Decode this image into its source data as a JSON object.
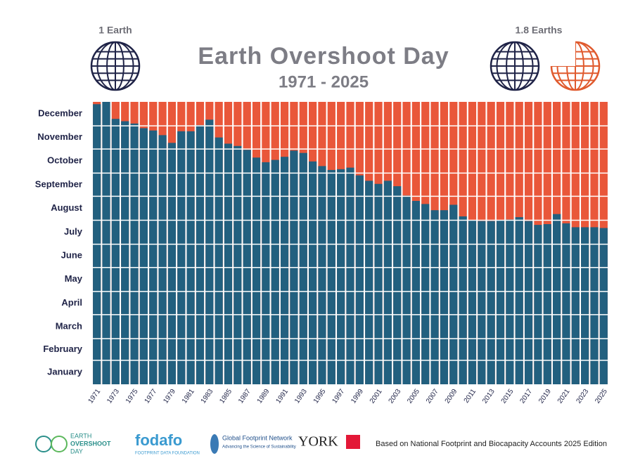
{
  "chart_data": {
    "type": "bar",
    "title": "Earth Overshoot Day",
    "subtitle": "1971 - 2025",
    "annotations": [
      "1 Earth",
      "1.8 Earths"
    ],
    "categories": [
      "1971",
      null,
      "1973",
      null,
      "1975",
      null,
      "1977",
      null,
      "1979",
      null,
      "1981",
      null,
      "1983",
      null,
      "1985",
      null,
      "1987",
      null,
      "1989",
      null,
      "1991",
      null,
      "1993",
      null,
      "1995",
      null,
      "1997",
      null,
      "1999",
      null,
      "2001",
      null,
      "2003",
      null,
      "2005",
      null,
      "2007",
      null,
      "2009",
      null,
      "2011",
      null,
      "2013",
      null,
      "2015",
      null,
      "2017",
      null,
      "2019",
      null,
      "2021",
      null,
      "2023",
      null,
      "2025"
    ],
    "values": [
      362,
      365,
      343,
      340,
      337,
      331,
      328,
      322,
      312,
      327,
      327,
      335,
      342,
      319,
      311,
      308,
      303,
      293,
      287,
      290,
      294,
      302,
      299,
      288,
      282,
      277,
      278,
      280,
      270,
      263,
      259,
      263,
      256,
      244,
      237,
      233,
      225,
      225,
      232,
      217,
      212,
      211,
      211,
      212,
      213,
      216,
      211,
      206,
      207,
      220,
      208,
      203,
      203,
      203,
      202
    ],
    "color": "#22607f",
    "background_color": "#e9573a",
    "ylim": [
      0,
      365
    ],
    "yticks": [
      {
        "value": 15.5,
        "label": "January"
      },
      {
        "value": 45,
        "label": "February"
      },
      {
        "value": 74.5,
        "label": "March"
      },
      {
        "value": 105,
        "label": "April"
      },
      {
        "value": 135.5,
        "label": "May"
      },
      {
        "value": 166,
        "label": "June"
      },
      {
        "value": 196.5,
        "label": "July"
      },
      {
        "value": 227.5,
        "label": "August"
      },
      {
        "value": 258,
        "label": "September"
      },
      {
        "value": 288.5,
        "label": "October"
      },
      {
        "value": 319,
        "label": "November"
      },
      {
        "value": 349.5,
        "label": "December"
      }
    ],
    "ygrid": [
      31,
      59,
      90,
      120,
      151,
      181,
      212,
      243,
      273,
      304,
      334
    ]
  },
  "footer": {
    "logos": [
      "EARTH",
      "OVERSHOOT",
      "DAY",
      "fodafo",
      "FOOTPRINT DATA FOUNDATION",
      "Global Footprint Network",
      "Advancing the Science of Sustainability",
      "YORK"
    ],
    "note": "Based on National Footprint and Biocapacity Accounts 2025 Edition"
  }
}
